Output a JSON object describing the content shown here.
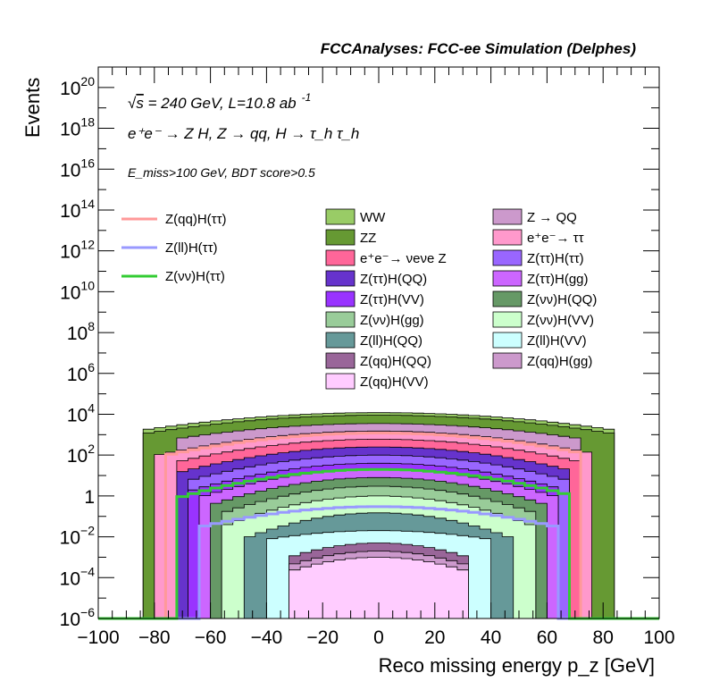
{
  "header": {
    "title": "FCCAnalyses: FCC-ee Simulation (Delphes)"
  },
  "annotations": {
    "line1_prefix": "√",
    "line1_s": "s",
    "line1_rest": " = 240 GeV, L=10.8 ab",
    "line1_exp": "-1",
    "line2": "e⁺e⁻ → Z H, Z → qq, H → τ_h τ_h",
    "line3": "E_miss>100 GeV, BDT score>0.5"
  },
  "chart_data": {
    "type": "histogram",
    "xlabel": "Reco missing energy p_z [GeV]",
    "ylabel": "Events",
    "xlim": [
      -100,
      100
    ],
    "ylim": [
      1e-06,
      1e+21
    ],
    "ylog": true,
    "xticks": [
      "−100",
      "−80",
      "−60",
      "−40",
      "−20",
      "0",
      "20",
      "40",
      "60",
      "80",
      "100"
    ],
    "yticks": [
      {
        "base": "10",
        "exp": "20",
        "v": 1e+20
      },
      {
        "base": "10",
        "exp": "18",
        "v": 1e+18
      },
      {
        "base": "10",
        "exp": "16",
        "v": 1e+16
      },
      {
        "base": "10",
        "exp": "14",
        "v": 100000000000000.0
      },
      {
        "base": "10",
        "exp": "12",
        "v": 1000000000000.0
      },
      {
        "base": "10",
        "exp": "10",
        "v": 10000000000.0
      },
      {
        "base": "10",
        "exp": "8",
        "v": 100000000.0
      },
      {
        "base": "10",
        "exp": "6",
        "v": 1000000.0
      },
      {
        "base": "10",
        "exp": "4",
        "v": 10000.0
      },
      {
        "base": "10",
        "exp": "2",
        "v": 100.0
      },
      {
        "base": "1",
        "exp": "",
        "v": 1
      },
      {
        "base": "10",
        "exp": "−2",
        "v": 0.01
      },
      {
        "base": "10",
        "exp": "−4",
        "v": 0.0001
      },
      {
        "base": "10",
        "exp": "−6",
        "v": 1e-06
      }
    ],
    "bin_width": 4,
    "stacked_envelopes": [
      {
        "name": "WW",
        "color": "#99cc66",
        "peak": 12000,
        "width": 60,
        "xmin": -84,
        "xmax": 84
      },
      {
        "name": "ZZ",
        "color": "#669933",
        "peak": 9000,
        "width": 58,
        "xmin": -84,
        "xmax": 84
      },
      {
        "name": "Z → QQ",
        "color": "#cc99cc",
        "peak": 3500,
        "width": 55,
        "xmin": -72,
        "xmax": 72
      },
      {
        "name": "e⁺e⁻→ ττ",
        "color": "#ff99cc",
        "peak": 1500,
        "width": 48,
        "xmin": -80,
        "xmax": 76
      },
      {
        "name": "e⁺e⁻→ νeνe Z",
        "color": "#ff6699",
        "peak": 600,
        "width": 45,
        "xmin": -70,
        "xmax": 70
      },
      {
        "name": "Z(ττ)H(QQ)",
        "color": "#6633cc",
        "peak": 250,
        "width": 42,
        "xmin": -70,
        "xmax": 66
      },
      {
        "name": "Z(ττ)H(ττ)",
        "color": "#9966ff",
        "peak": 100,
        "width": 40,
        "xmin": -68,
        "xmax": 66
      },
      {
        "name": "Z(ττ)H(VV)",
        "color": "#9933ff",
        "peak": 40,
        "width": 38,
        "xmin": -66,
        "xmax": 64
      },
      {
        "name": "Z(ττ)H(gg)",
        "color": "#cc66ff",
        "peak": 20,
        "width": 36,
        "xmin": -64,
        "xmax": 64
      },
      {
        "name": "Z(νν)H(QQ)",
        "color": "#669966",
        "peak": 8,
        "width": 34,
        "xmin": -60,
        "xmax": 60
      },
      {
        "name": "Z(νν)H(gg)",
        "color": "#99cc99",
        "peak": 3,
        "width": 32,
        "xmin": -56,
        "xmax": 56
      },
      {
        "name": "Z(νν)H(VV)",
        "color": "#ccffcc",
        "peak": 1,
        "width": 30,
        "xmin": -54,
        "xmax": 54
      },
      {
        "name": "Z(ll)H(QQ)",
        "color": "#669999",
        "peak": 0.15,
        "width": 28,
        "xmin": -48,
        "xmax": 48
      },
      {
        "name": "Z(ll)H(VV)",
        "color": "#ccffff",
        "peak": 0.02,
        "width": 40,
        "xmin": -40,
        "xmax": 40
      },
      {
        "name": "Z(qq)H(QQ)",
        "color": "#996699",
        "peak": 0.005,
        "width": 25,
        "xmin": -30,
        "xmax": 30
      },
      {
        "name": "Z(qq)H(gg)",
        "color": "#cc99cc",
        "peak": 0.002,
        "width": 25,
        "xmin": -30,
        "xmax": 30
      },
      {
        "name": "Z(qq)H(VV)",
        "color": "#ffccff",
        "peak": 0.001,
        "width": 25,
        "xmin": -30,
        "xmax": 30
      }
    ],
    "signal_lines": [
      {
        "name": "Z(qq)H(ττ)",
        "color": "#ff9999",
        "peak": 1200,
        "width": 48,
        "xmin": -76,
        "xmax": 70
      },
      {
        "name": "Z(ll)H(ττ)",
        "color": "#9999ff",
        "peak": 0.3,
        "width": 42,
        "xmin": -62,
        "xmax": 62
      },
      {
        "name": "Z(νν)H(ττ)",
        "color": "#33cc33",
        "peak": 20,
        "width": 40,
        "xmin": -70,
        "xmax": 66
      }
    ],
    "legend_signals": [
      {
        "label": "Z(qq)H(ττ)",
        "color": "#ff9999"
      },
      {
        "label": "Z(ll)H(ττ)",
        "color": "#9999ff"
      },
      {
        "label": "Z(νν)H(ττ)",
        "color": "#33cc33"
      }
    ],
    "legend_backgrounds": [
      {
        "label": "WW",
        "color": "#99cc66"
      },
      {
        "label": "Z → QQ",
        "color": "#cc99cc"
      },
      {
        "label": "ZZ",
        "color": "#669933"
      },
      {
        "label": "e⁺e⁻→ ττ",
        "color": "#ff99cc"
      },
      {
        "label": "e⁺e⁻→ νeνe Z",
        "color": "#ff6699"
      },
      {
        "label": "Z(ττ)H(ττ)",
        "color": "#9966ff"
      },
      {
        "label": "Z(ττ)H(QQ)",
        "color": "#6633cc"
      },
      {
        "label": "Z(ττ)H(gg)",
        "color": "#cc66ff"
      },
      {
        "label": "Z(ττ)H(VV)",
        "color": "#9933ff"
      },
      {
        "label": "Z(νν)H(QQ)",
        "color": "#669966"
      },
      {
        "label": "Z(νν)H(gg)",
        "color": "#99cc99"
      },
      {
        "label": "Z(νν)H(VV)",
        "color": "#ccffcc"
      },
      {
        "label": "Z(ll)H(QQ)",
        "color": "#669999"
      },
      {
        "label": "Z(ll)H(VV)",
        "color": "#ccffff"
      },
      {
        "label": "Z(qq)H(QQ)",
        "color": "#996699"
      },
      {
        "label": "Z(qq)H(gg)",
        "color": "#cc99cc"
      },
      {
        "label": "Z(qq)H(VV)",
        "color": "#ffccff"
      }
    ]
  }
}
